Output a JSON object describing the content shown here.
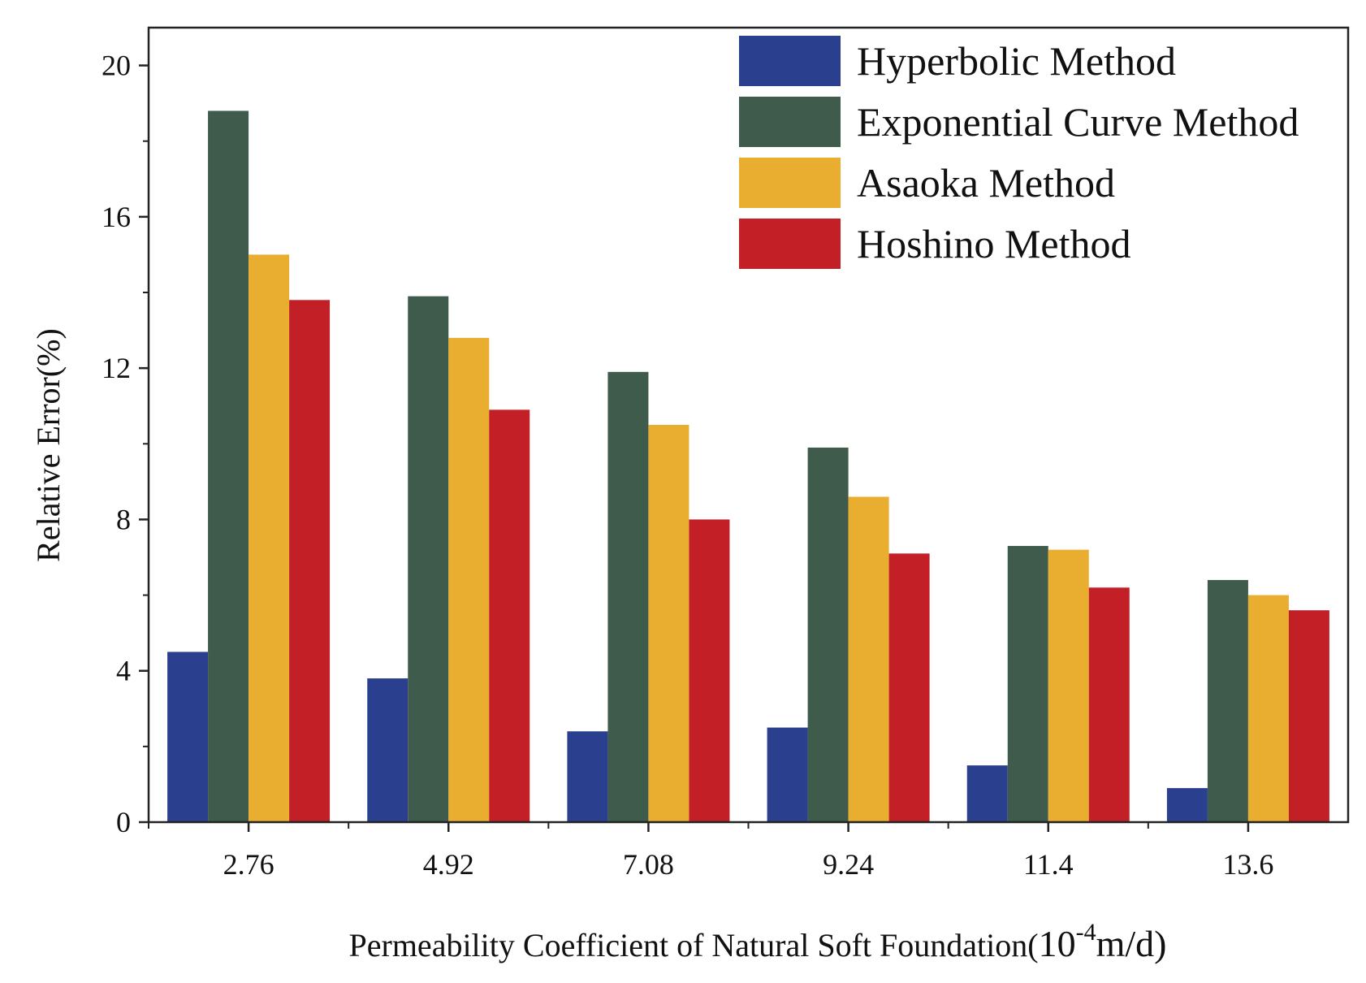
{
  "chart_data": {
    "type": "bar",
    "title": "",
    "xlabel": "Permeability Coefficient of Natural Soft Foundation(",
    "xlabel_unit_base": "10",
    "xlabel_unit_exp": "-4",
    "xlabel_unit_tail": "m/d)",
    "ylabel": "Relative Error(%)",
    "ylim": [
      0,
      21
    ],
    "yticks": [
      0,
      4,
      8,
      12,
      16,
      20
    ],
    "categories": [
      "2.76",
      "4.92",
      "7.08",
      "9.24",
      "11.4",
      "13.6"
    ],
    "legend_position": "top-right",
    "grid": false,
    "series": [
      {
        "name": "Hyperbolic Method",
        "color": "#2b3f8f",
        "values": [
          4.5,
          3.8,
          2.4,
          2.5,
          1.5,
          0.9
        ]
      },
      {
        "name": "Exponential Curve Method",
        "color": "#3f5b4c",
        "values": [
          18.8,
          13.9,
          11.9,
          9.9,
          7.3,
          6.4
        ]
      },
      {
        "name": "Asaoka Method",
        "color": "#e9ad2f",
        "values": [
          15.0,
          12.8,
          10.5,
          8.6,
          7.2,
          6.0
        ]
      },
      {
        "name": "Hoshino Method",
        "color": "#c21f26",
        "values": [
          13.8,
          10.9,
          8.0,
          7.1,
          6.2,
          5.6
        ]
      }
    ]
  }
}
